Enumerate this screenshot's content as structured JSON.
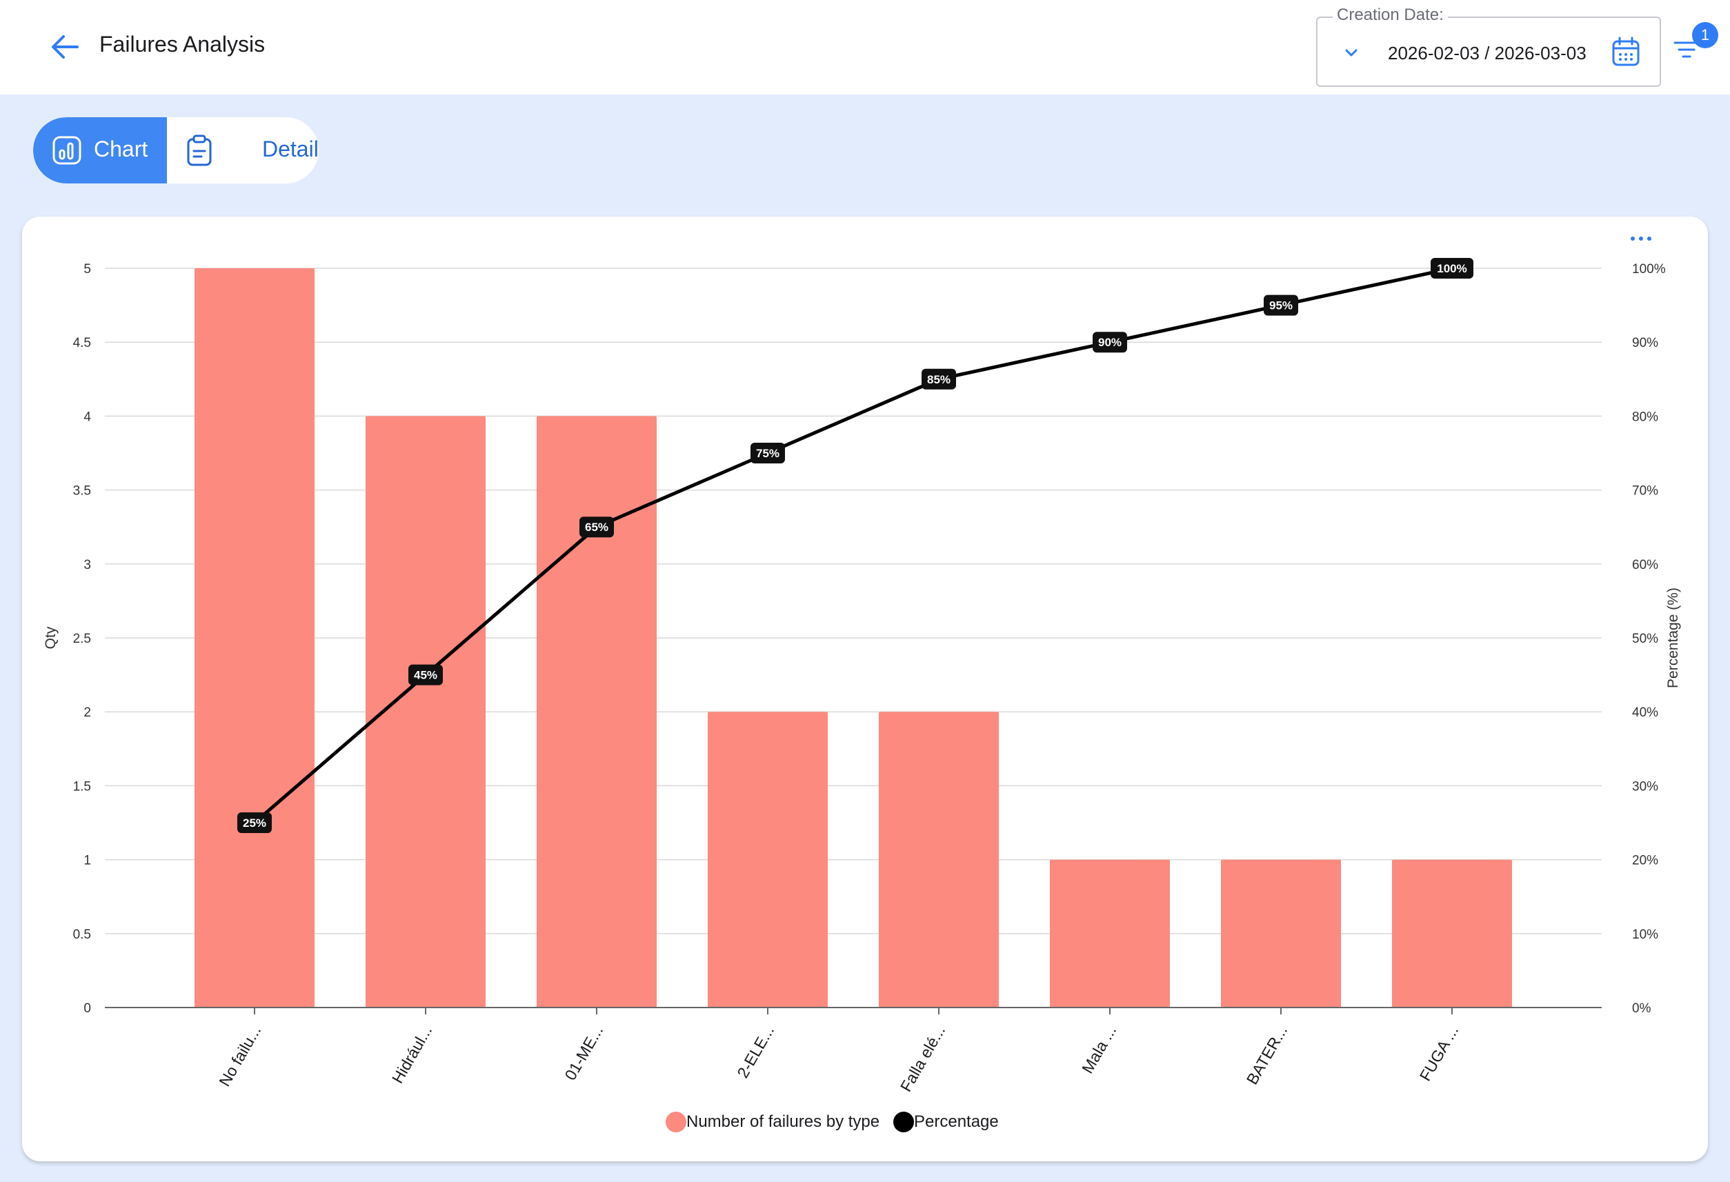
{
  "header": {
    "title": "Failures Analysis",
    "date_filter": {
      "label": "Creation Date:",
      "value": "2026-02-03 / 2026-03-03"
    },
    "filter_badge_count": "1"
  },
  "view_tabs": [
    {
      "label": "Chart",
      "active": true,
      "icon": "chart-icon"
    },
    {
      "label": "Details",
      "active": false,
      "icon": "clipboard-icon"
    }
  ],
  "colors": {
    "accent": "#3f87f2",
    "bar": "#fc8a7e",
    "line": "#000000"
  },
  "chart_data": {
    "type": "bar",
    "categories": [
      "No failu...",
      "Hidrául...",
      "01-ME...",
      "2-ELE...",
      "Falla elé...",
      "Mala ...",
      "BATER...",
      "FUGA ..."
    ],
    "series": [
      {
        "name": "Number of failures by type",
        "type": "bar",
        "axis": "left",
        "color": "#fc8a7e",
        "values": [
          5,
          4,
          4,
          2,
          2,
          1,
          1,
          1
        ]
      },
      {
        "name": "Percentage",
        "type": "line",
        "axis": "right",
        "color": "#000000",
        "values": [
          25,
          45,
          65,
          75,
          85,
          90,
          95,
          100
        ],
        "labels": [
          "25%",
          "45%",
          "65%",
          "75%",
          "85%",
          "90%",
          "95%",
          "100%"
        ]
      }
    ],
    "ylabel": "Qty",
    "ylabel_right": "Percentage (%)",
    "ylim": [
      0,
      5
    ],
    "ylim_right": [
      0,
      100
    ],
    "yticks": [
      "0",
      "0.5",
      "1",
      "1.5",
      "2",
      "2.5",
      "3",
      "3.5",
      "4",
      "4.5",
      "5"
    ],
    "yticks_right": [
      "0%",
      "10%",
      "20%",
      "30%",
      "40%",
      "50%",
      "60%",
      "70%",
      "80%",
      "90%",
      "100%"
    ],
    "grid": true,
    "legend_position": "bottom-center"
  }
}
